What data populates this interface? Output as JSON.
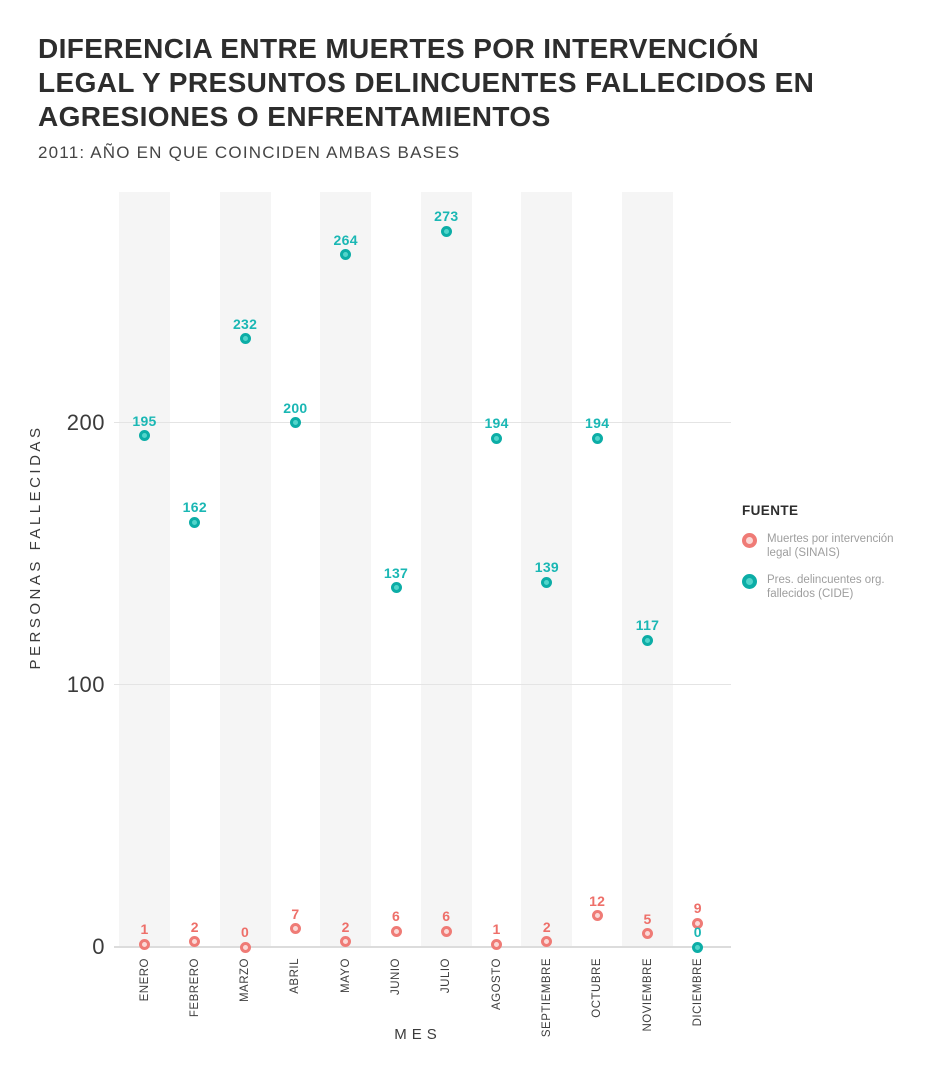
{
  "header": {
    "title_lines": [
      "DIFERENCIA ENTRE MUERTES POR INTERVENCIÓN",
      "LEGAL Y PRESUNTOS DELINCUENTES FALLECIDOS EN",
      "AGRESIONES O ENFRENTAMIENTOS"
    ],
    "subtitle": "2011: AÑO EN QUE COINCIDEN AMBAS BASES"
  },
  "legend": {
    "title": "FUENTE",
    "items": [
      {
        "label_lines": [
          "Muertes por intervención",
          "legal (SINAIS)"
        ],
        "ring_color": "#ef7b76",
        "fill_color": "#fbd9d7"
      },
      {
        "label_lines": [
          "Pres. delincuentes org.",
          "fallecidos (CIDE)"
        ],
        "ring_color": "#0cada6",
        "fill_color": "#52d5cb"
      }
    ]
  },
  "chart_data": {
    "type": "scatter",
    "title": "DIFERENCIA ENTRE MUERTES POR INTERVENCIÓN LEGAL Y PRESUNTOS DELINCUENTES FALLECIDOS EN AGRESIONES O ENFRENTAMIENTOS",
    "subtitle": "2011: AÑO EN QUE COINCIDEN AMBAS BASES",
    "xlabel": "MES",
    "ylabel": "PERSONAS FALLECIDAS",
    "categories": [
      "ENERO",
      "FEBRERO",
      "MARZO",
      "ABRIL",
      "MAYO",
      "JUNIO",
      "JULIO",
      "AGOSTO",
      "SEPTIEMBRE",
      "OCTUBRE",
      "NOVIEMBRE",
      "DICIEMBRE"
    ],
    "series": [
      {
        "name": "Muertes por intervención legal (SINAIS)",
        "ring_color": "#ef7b76",
        "fill_color": "#fbd9d7",
        "label_color": "#ee6f69",
        "values": [
          1,
          2,
          0,
          7,
          2,
          6,
          6,
          1,
          2,
          12,
          5,
          9
        ]
      },
      {
        "name": "Pres. delincuentes org. fallecidos (CIDE)",
        "ring_color": "#0cada6",
        "fill_color": "#52d5cb",
        "label_color": "#1ab7b4",
        "values": [
          195,
          162,
          232,
          200,
          264,
          137,
          273,
          194,
          139,
          194,
          117,
          0
        ]
      }
    ],
    "yticks": [
      0,
      100,
      200
    ],
    "ylim": [
      0,
      287
    ],
    "grid": "horizontal",
    "legend_title": "FUENTE",
    "legend_position": "right",
    "background_stripes": "light gray columns behind alternate months (ENERO, MARZO, MAYO, JULIO, SEPTIEMBRE, NOVIEMBRE)"
  }
}
